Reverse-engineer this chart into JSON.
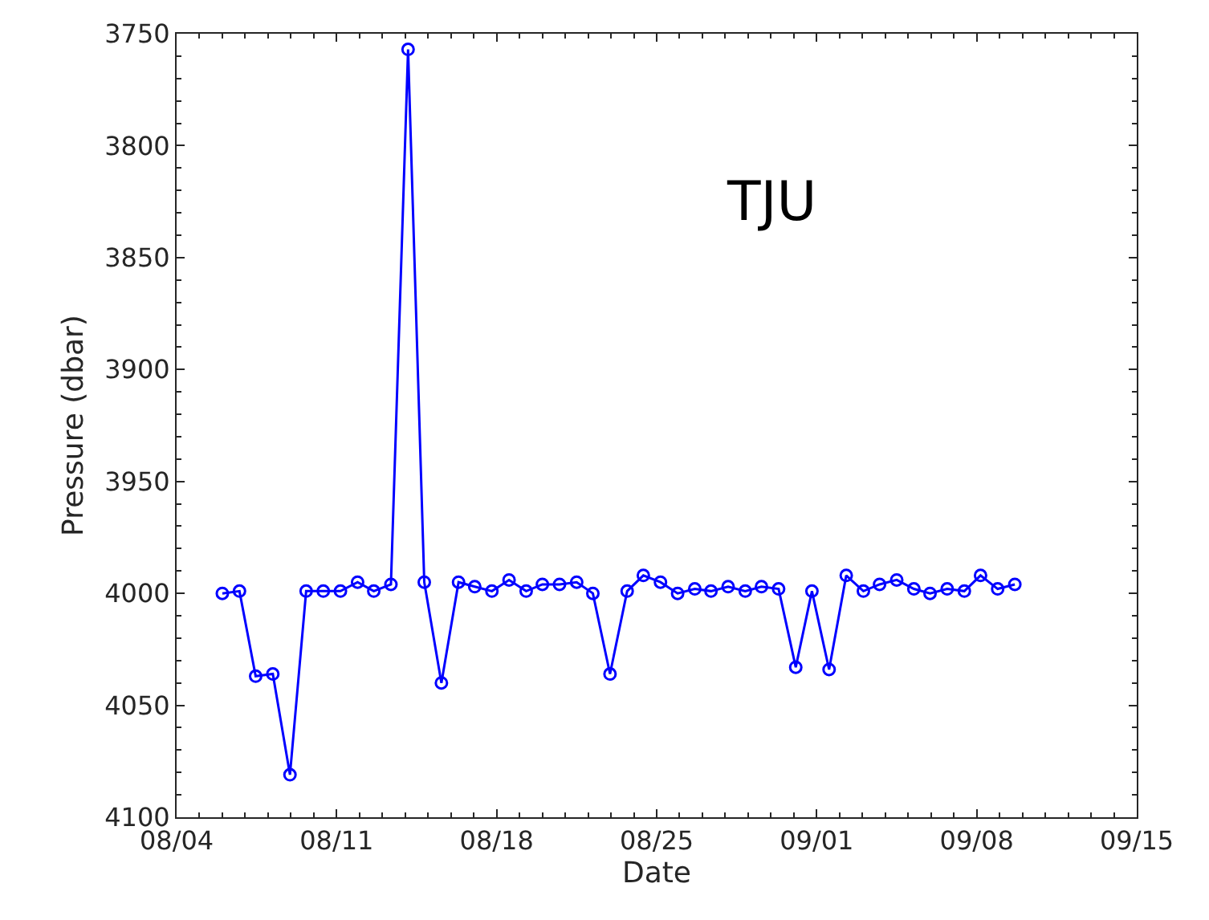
{
  "chart_data": {
    "type": "line",
    "xlabel": "Date",
    "ylabel": "Pressure (dbar)",
    "annotations": [
      "TJU"
    ],
    "x": [
      "--08-06T00:00",
      "--08-06T18:00",
      "--08-07T11:00",
      "--08-08T05:00",
      "--08-08T23:00",
      "--08-09T16:00",
      "--08-10T10:00",
      "--08-11T04:00",
      "--08-11T22:00",
      "--08-12T15:00",
      "--08-13T09:00",
      "--08-14T03:00",
      "--08-14T20:00",
      "--08-15T14:00",
      "--08-16T08:00",
      "--08-17T01:00",
      "--08-17T19:00",
      "--08-18T13:00",
      "--08-19T07:00",
      "--08-20T00:00",
      "--08-20T18:00",
      "--08-21T12:00",
      "--08-22T05:00",
      "--08-22T23:00",
      "--08-23T17:00",
      "--08-24T10:00",
      "--08-25T04:00",
      "--08-25T22:00",
      "--08-26T16:00",
      "--08-27T09:00",
      "--08-28T03:00",
      "--08-28T21:00",
      "--08-29T14:00",
      "--08-30T08:00",
      "--08-31T02:00",
      "--08-31T19:00",
      "--09-01T13:00",
      "--09-02T07:00",
      "--09-03T01:00",
      "--09-03T18:00",
      "--09-04T12:00",
      "--09-05T06:00",
      "--09-05T23:00",
      "--09-06T17:00",
      "--09-07T11:00",
      "--09-08T04:00",
      "--09-08T22:00",
      "--09-09T16:00"
    ],
    "series": [
      {
        "color": "#0000ff",
        "values": [
          4000,
          3999,
          4037,
          4036,
          4081,
          3999,
          3999,
          3999,
          3995,
          3999,
          3996,
          3757,
          3995,
          4040,
          3995,
          3997,
          3999,
          3994,
          3999,
          3996,
          3996,
          3995,
          4000,
          4036,
          3999,
          3992,
          3995,
          4000,
          3998,
          3999,
          3997,
          3999,
          3997,
          3998,
          4033,
          3999,
          4034,
          3992,
          3999,
          3996,
          3994,
          3998,
          4000,
          3998,
          3999,
          3992,
          3998,
          3996
        ]
      }
    ],
    "xlim": [
      "--08-04",
      "--09-15"
    ],
    "xticks": [
      {
        "value": "--08-04",
        "label": "08/04"
      },
      {
        "value": "--08-11",
        "label": "08/11"
      },
      {
        "value": "--08-18",
        "label": "08/18"
      },
      {
        "value": "--08-25",
        "label": "08/25"
      },
      {
        "value": "--09-01",
        "label": "09/01"
      },
      {
        "value": "--09-08",
        "label": "09/08"
      },
      {
        "value": "--09-15",
        "label": "09/15"
      }
    ],
    "ylim": [
      4100,
      3750
    ],
    "yticks": [
      3750,
      3800,
      3850,
      3900,
      3950,
      4000,
      4050,
      4100
    ],
    "marker": "circle",
    "line_style": "solid"
  }
}
